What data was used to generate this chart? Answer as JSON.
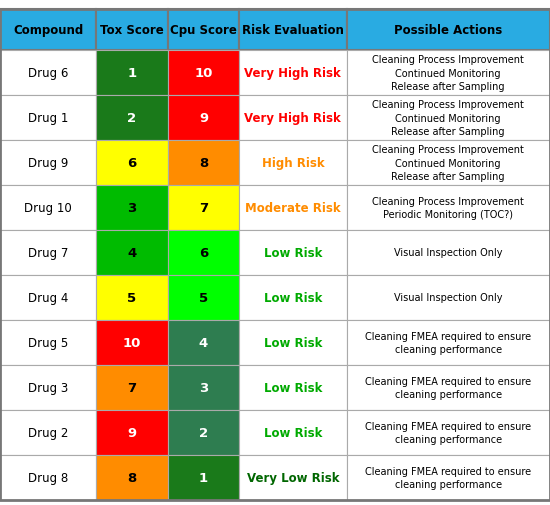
{
  "header": [
    "Compound",
    "Tox Score",
    "Cpu Score",
    "Risk Evaluation",
    "Possible Actions"
  ],
  "header_bg": "#29ABE2",
  "header_text_color": "#000000",
  "rows": [
    {
      "compound": "Drug 6",
      "tox_score": "1",
      "tox_color": "#1A7A1A",
      "tox_text_color": "#FFFFFF",
      "cpu_score": "10",
      "cpu_color": "#FF0000",
      "cpu_text_color": "#FFFFFF",
      "risk_eval": "Very High Risk",
      "risk_color": "#FF0000",
      "actions": "Cleaning Process Improvement\nContinued Monitoring\nRelease after Sampling"
    },
    {
      "compound": "Drug 1",
      "tox_score": "2",
      "tox_color": "#1A7A1A",
      "tox_text_color": "#FFFFFF",
      "cpu_score": "9",
      "cpu_color": "#FF0000",
      "cpu_text_color": "#FFFFFF",
      "risk_eval": "Very High Risk",
      "risk_color": "#FF0000",
      "actions": "Cleaning Process Improvement\nContinued Monitoring\nRelease after Sampling"
    },
    {
      "compound": "Drug 9",
      "tox_score": "6",
      "tox_color": "#FFFF00",
      "tox_text_color": "#000000",
      "cpu_score": "8",
      "cpu_color": "#FF8C00",
      "cpu_text_color": "#000000",
      "risk_eval": "High Risk",
      "risk_color": "#FF8C00",
      "actions": "Cleaning Process Improvement\nContinued Monitoring\nRelease after Sampling"
    },
    {
      "compound": "Drug 10",
      "tox_score": "3",
      "tox_color": "#00BB00",
      "tox_text_color": "#000000",
      "cpu_score": "7",
      "cpu_color": "#FFFF00",
      "cpu_text_color": "#000000",
      "risk_eval": "Moderate Risk",
      "risk_color": "#FF8C00",
      "actions": "Cleaning Process Improvement\nPeriodic Monitoring (TOC?)"
    },
    {
      "compound": "Drug 7",
      "tox_score": "4",
      "tox_color": "#00BB00",
      "tox_text_color": "#000000",
      "cpu_score": "6",
      "cpu_color": "#00FF00",
      "cpu_text_color": "#000000",
      "risk_eval": "Low Risk",
      "risk_color": "#00AA00",
      "actions": "Visual Inspection Only"
    },
    {
      "compound": "Drug 4",
      "tox_score": "5",
      "tox_color": "#FFFF00",
      "tox_text_color": "#000000",
      "cpu_score": "5",
      "cpu_color": "#00FF00",
      "cpu_text_color": "#000000",
      "risk_eval": "Low Risk",
      "risk_color": "#00AA00",
      "actions": "Visual Inspection Only"
    },
    {
      "compound": "Drug 5",
      "tox_score": "10",
      "tox_color": "#FF0000",
      "tox_text_color": "#FFFFFF",
      "cpu_score": "4",
      "cpu_color": "#2E7D50",
      "cpu_text_color": "#FFFFFF",
      "risk_eval": "Low Risk",
      "risk_color": "#00AA00",
      "actions": "Cleaning FMEA required to ensure\ncleaning performance"
    },
    {
      "compound": "Drug 3",
      "tox_score": "7",
      "tox_color": "#FF8C00",
      "tox_text_color": "#000000",
      "cpu_score": "3",
      "cpu_color": "#2E7D50",
      "cpu_text_color": "#FFFFFF",
      "risk_eval": "Low Risk",
      "risk_color": "#00AA00",
      "actions": "Cleaning FMEA required to ensure\ncleaning performance"
    },
    {
      "compound": "Drug 2",
      "tox_score": "9",
      "tox_color": "#FF0000",
      "tox_text_color": "#FFFFFF",
      "cpu_score": "2",
      "cpu_color": "#2E7D50",
      "cpu_text_color": "#FFFFFF",
      "risk_eval": "Low Risk",
      "risk_color": "#00AA00",
      "actions": "Cleaning FMEA required to ensure\ncleaning performance"
    },
    {
      "compound": "Drug 8",
      "tox_score": "8",
      "tox_color": "#FF8C00",
      "tox_text_color": "#000000",
      "cpu_score": "1",
      "cpu_color": "#1A7A1A",
      "cpu_text_color": "#FFFFFF",
      "risk_eval": "Very Low Risk",
      "risk_color": "#006600",
      "actions": "Cleaning FMEA required to ensure\ncleaning performance"
    }
  ],
  "figsize": [
    5.5,
    5.06
  ],
  "dpi": 100,
  "border_color": "#777777",
  "grid_color": "#AAAAAA"
}
